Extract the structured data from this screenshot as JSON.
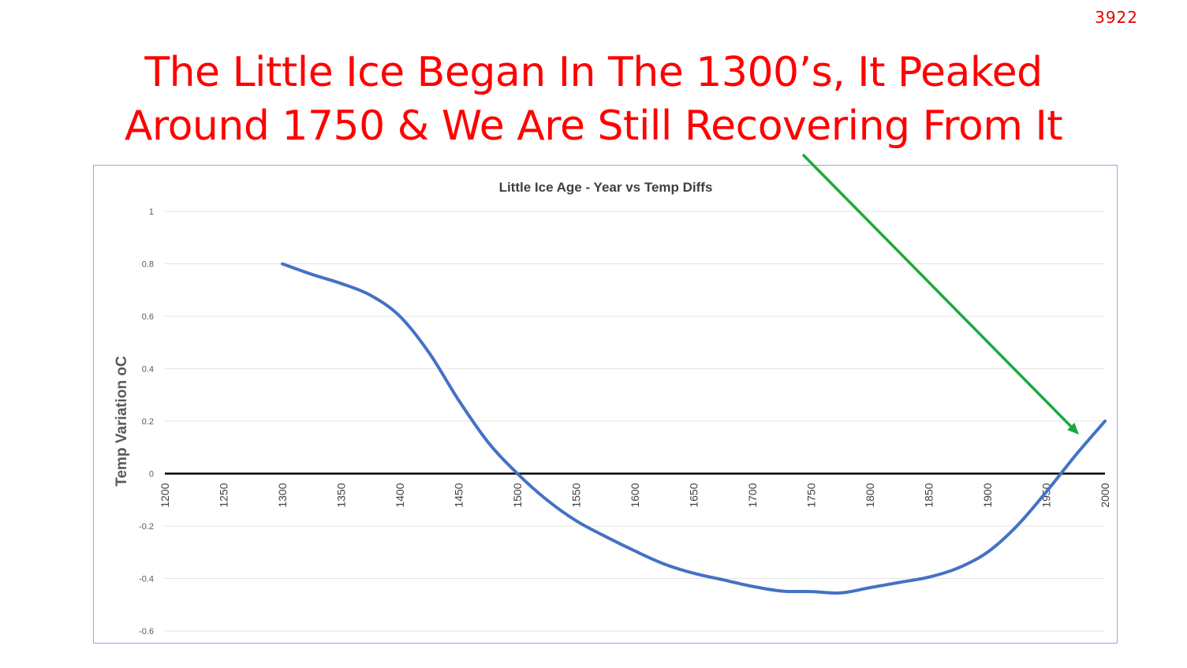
{
  "slide": {
    "number": "3922",
    "title_lines": [
      "The Little Ice Began In The 1300’s, It Peaked",
      "Around 1750 & We Are Still Recovering From It"
    ],
    "title_color": "#ff0000",
    "annotation_arrow_color": "#1aaa3c"
  },
  "chart_data": {
    "type": "line",
    "title": "Little Ice Age - Year vs Temp Diffs",
    "xlabel": "",
    "ylabel": "Temp Variation oC",
    "xlim": [
      1200,
      2000
    ],
    "ylim": [
      -0.6,
      1
    ],
    "x_ticks": [
      "1200",
      "1250",
      "1300",
      "1350",
      "1400",
      "1450",
      "1500",
      "1550",
      "1600",
      "1650",
      "1700",
      "1750",
      "1800",
      "1850",
      "1900",
      "1950",
      "2000"
    ],
    "y_ticks": [
      "1",
      "0.8",
      "0.6",
      "0.4",
      "0.2",
      "0",
      "-0.2",
      "-0.4",
      "-0.6"
    ],
    "grid": true,
    "legend": "none",
    "series": [
      {
        "color": "#4472c4",
        "x": [
          1300,
          1325,
          1350,
          1375,
          1400,
          1425,
          1450,
          1475,
          1500,
          1525,
          1550,
          1575,
          1600,
          1625,
          1650,
          1675,
          1700,
          1725,
          1750,
          1775,
          1800,
          1825,
          1850,
          1875,
          1900,
          1925,
          1950,
          1975,
          2000
        ],
        "values": [
          0.8,
          0.76,
          0.725,
          0.68,
          0.6,
          0.46,
          0.28,
          0.12,
          0.0,
          -0.1,
          -0.18,
          -0.24,
          -0.295,
          -0.345,
          -0.38,
          -0.405,
          -0.43,
          -0.448,
          -0.45,
          -0.455,
          -0.435,
          -0.415,
          -0.395,
          -0.36,
          -0.3,
          -0.2,
          -0.07,
          0.07,
          0.2
        ]
      }
    ]
  }
}
